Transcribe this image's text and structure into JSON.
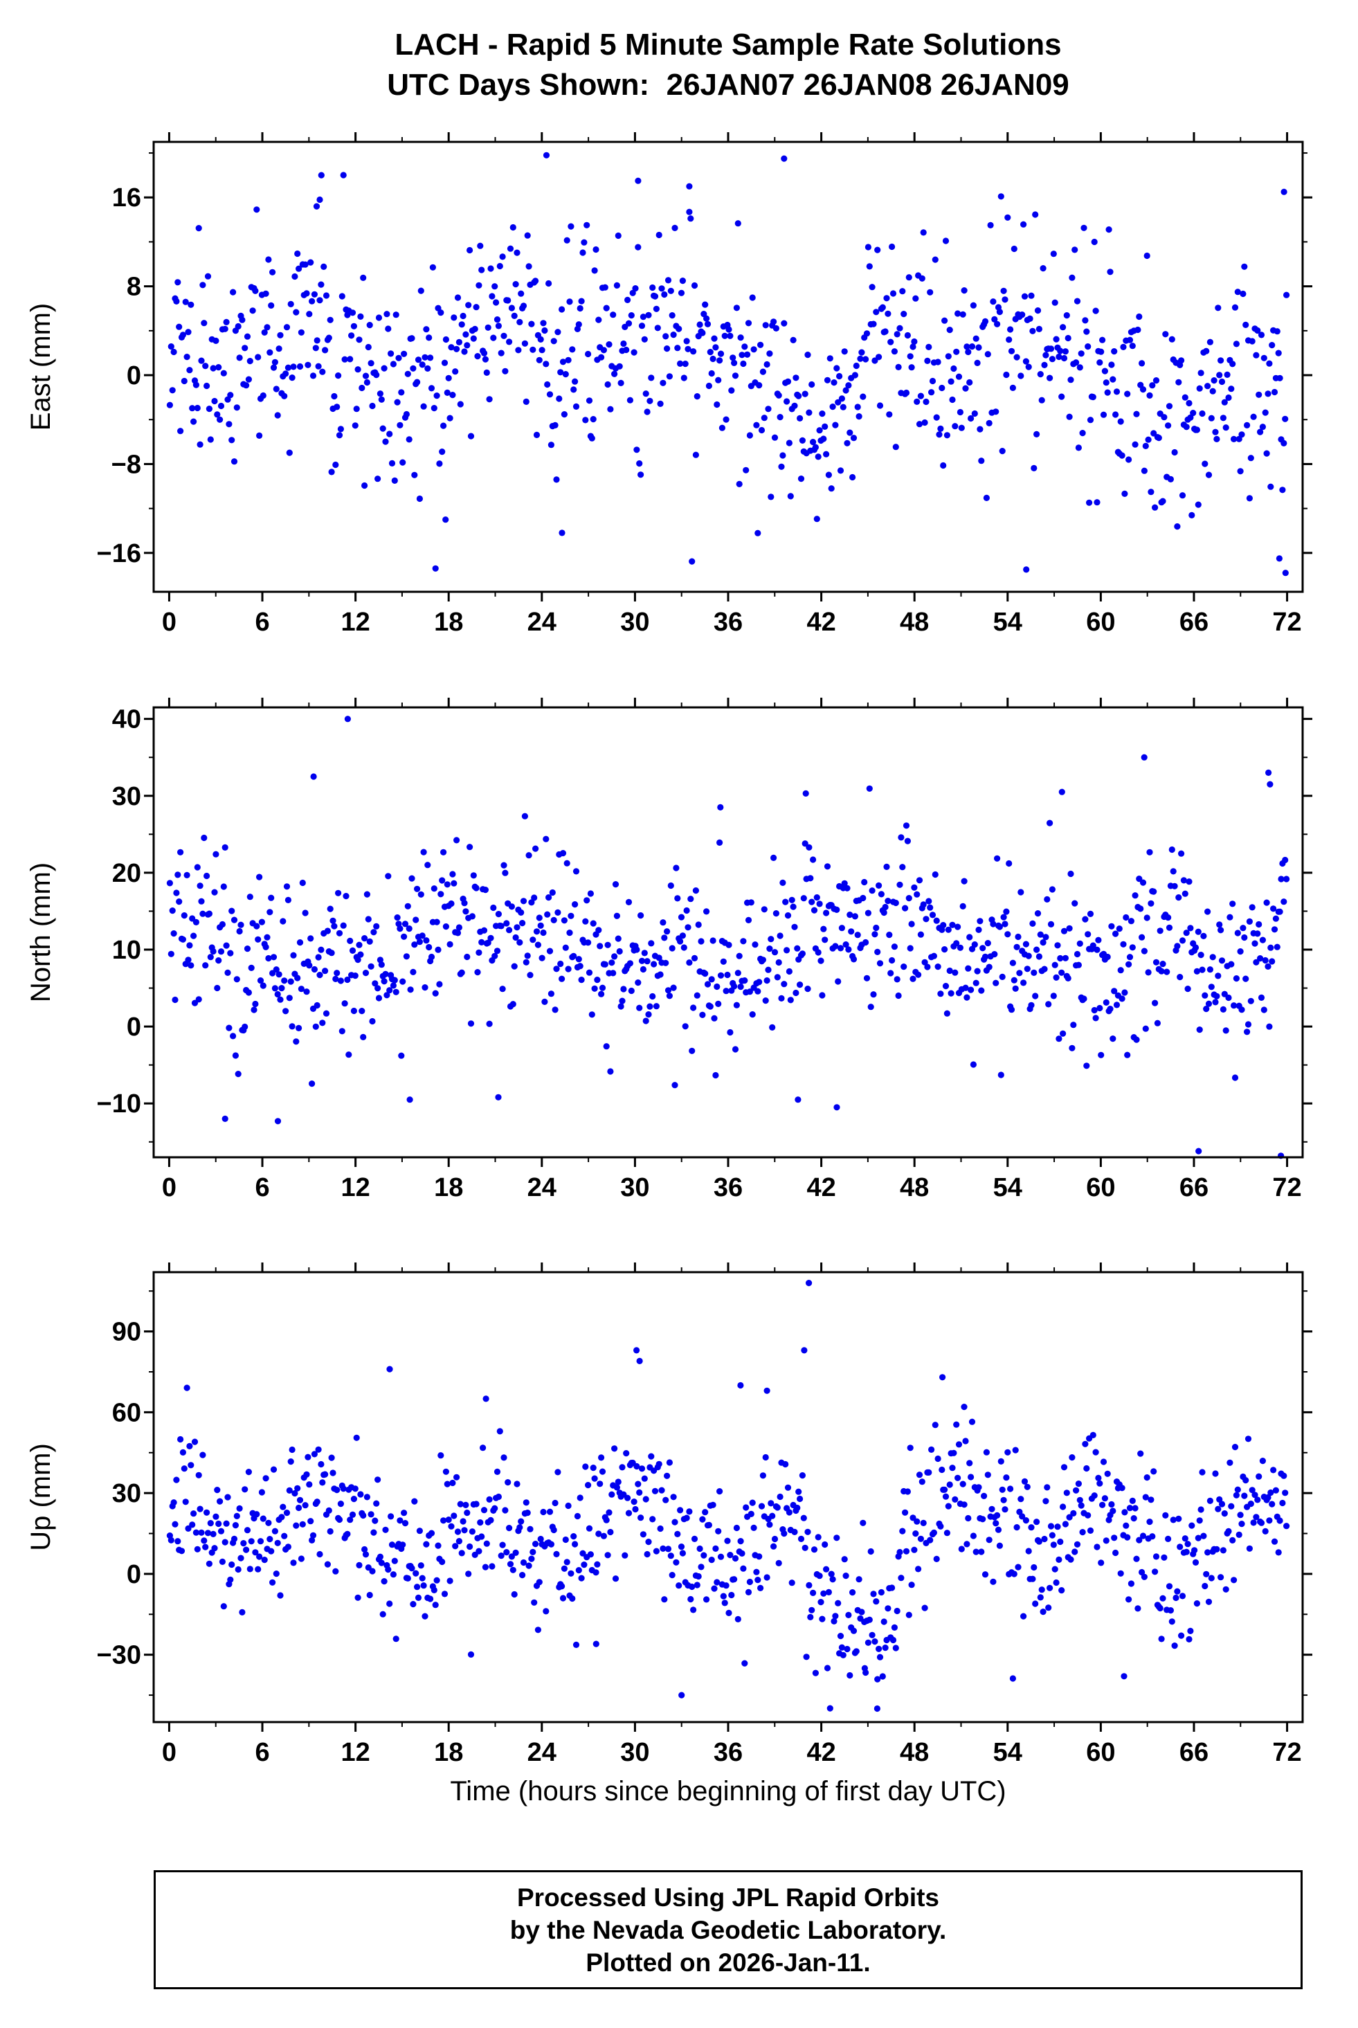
{
  "page": {
    "background": "#ffffff"
  },
  "chart_data": {
    "type": "scatter",
    "station": "LACH",
    "title": "LACH - Rapid 5 Minute Sample Rate Solutions",
    "subtitle": "UTC Days Shown:  26JAN07 26JAN08 26JAN09",
    "utc_days": [
      "26JAN07",
      "26JAN08",
      "26JAN09"
    ],
    "xlabel": "Time (hours since beginning of first day UTC)",
    "xlim": [
      -1,
      73
    ],
    "x_ticks": [
      0,
      6,
      12,
      18,
      24,
      30,
      36,
      42,
      48,
      54,
      60,
      66,
      72
    ],
    "x_minor_step": 3,
    "sample_rate": "5 minute",
    "points_per_panel": 850,
    "marker": {
      "shape": "circle",
      "radius_px": 4.6,
      "color": "#0000ee"
    },
    "grid": false,
    "legend": "none",
    "panels": [
      {
        "name": "east",
        "ylabel": "East (mm)",
        "ylim": [
          -19.5,
          21
        ],
        "yticks": [
          -16,
          -8,
          0,
          8,
          16
        ],
        "y_minor_step": 4,
        "synthesis": {
          "base": 1.8,
          "waves": [
            {
              "period": 24,
              "amp": 1.5,
              "phase": 0.8
            },
            {
              "period": 12,
              "amp": 2.2,
              "phase": 3.14
            }
          ],
          "noise_std": 4.6,
          "outlier_prob": 0.018,
          "outlier_base": 6,
          "outlier_spread": 5,
          "dips": [
            {
              "x0": 40,
              "x1": 45,
              "dy": -4.5
            },
            {
              "x0": 63,
              "x1": 73,
              "dy": -4
            }
          ],
          "clip": [
            -19.2,
            20.6
          ]
        },
        "extra_points": [
          [
            24.3,
            19.8
          ],
          [
            39.6,
            19.5
          ],
          [
            9.8,
            18.0
          ],
          [
            30.2,
            17.5
          ],
          [
            33.5,
            17.0
          ],
          [
            71.8,
            16.5
          ],
          [
            55.2,
            -17.5
          ],
          [
            71.5,
            -16.5
          ],
          [
            71.9,
            -17.8
          ],
          [
            17.8,
            -13.0
          ],
          [
            25.3,
            -14.2
          ],
          [
            9.5,
            15.2
          ],
          [
            9.7,
            15.8
          ]
        ]
      },
      {
        "name": "north",
        "ylabel": "North (mm)",
        "ylim": [
          -17,
          41.5
        ],
        "yticks": [
          -10,
          0,
          10,
          20,
          30,
          40
        ],
        "y_minor_step": 5,
        "synthesis": {
          "base": 10.5,
          "waves": [
            {
              "period": 24,
              "amp": 3.0,
              "phase": 2.4
            },
            {
              "period": 8,
              "amp": 1.5,
              "phase": 1.0
            }
          ],
          "noise_std": 5.2,
          "outlier_prob": 0.02,
          "outlier_base": 8,
          "outlier_spread": 6,
          "dips": [
            {
              "x0": 66,
              "x1": 71,
              "dy": -5
            }
          ],
          "clip": [
            -16.9,
            40.8
          ]
        },
        "extra_points": [
          [
            11.5,
            40.0
          ],
          [
            9.3,
            32.5
          ],
          [
            35.5,
            28.5
          ],
          [
            62.8,
            35.0
          ],
          [
            70.8,
            33.0
          ],
          [
            70.9,
            31.5
          ],
          [
            57.5,
            30.5
          ],
          [
            41.0,
            30.3
          ],
          [
            3.6,
            -12.0
          ],
          [
            7.0,
            -12.3
          ],
          [
            15.5,
            -9.5
          ],
          [
            21.2,
            -9.2
          ],
          [
            40.5,
            -9.5
          ],
          [
            43.0,
            -10.5
          ],
          [
            66.3,
            -16.2
          ],
          [
            71.6,
            -16.8
          ]
        ]
      },
      {
        "name": "up",
        "ylabel": "Up (mm)",
        "ylim": [
          -55,
          112
        ],
        "yticks": [
          -30,
          0,
          30,
          60,
          90
        ],
        "y_minor_step": 15,
        "synthesis": {
          "base": 16,
          "waves": [
            {
              "period": 24,
              "amp": 5,
              "phase": 0.5
            },
            {
              "period": 10,
              "amp": 9,
              "phase": 1.57
            }
          ],
          "noise_std": 13,
          "outlier_prob": 0.025,
          "outlier_base": 25,
          "outlier_spread": 15,
          "dips": [
            {
              "x0": 41,
              "x1": 47,
              "dy": -24
            }
          ],
          "clip": [
            -52,
            110
          ]
        },
        "extra_points": [
          [
            41.2,
            108
          ],
          [
            40.9,
            83
          ],
          [
            30.1,
            83
          ],
          [
            30.3,
            79
          ],
          [
            14.2,
            76
          ],
          [
            36.8,
            70
          ],
          [
            38.5,
            68
          ],
          [
            20.4,
            65
          ],
          [
            49.8,
            73
          ],
          [
            51.2,
            62
          ],
          [
            45.6,
            -50
          ],
          [
            33.0,
            -45
          ],
          [
            61.5,
            -38
          ],
          [
            44.8,
            -35
          ],
          [
            27.5,
            -26
          ]
        ]
      }
    ]
  },
  "footer": {
    "lines": [
      "Processed Using JPL Rapid Orbits",
      "by the Nevada Geodetic Laboratory.",
      "Plotted on 2026-Jan-11."
    ]
  },
  "seed": 20260111
}
